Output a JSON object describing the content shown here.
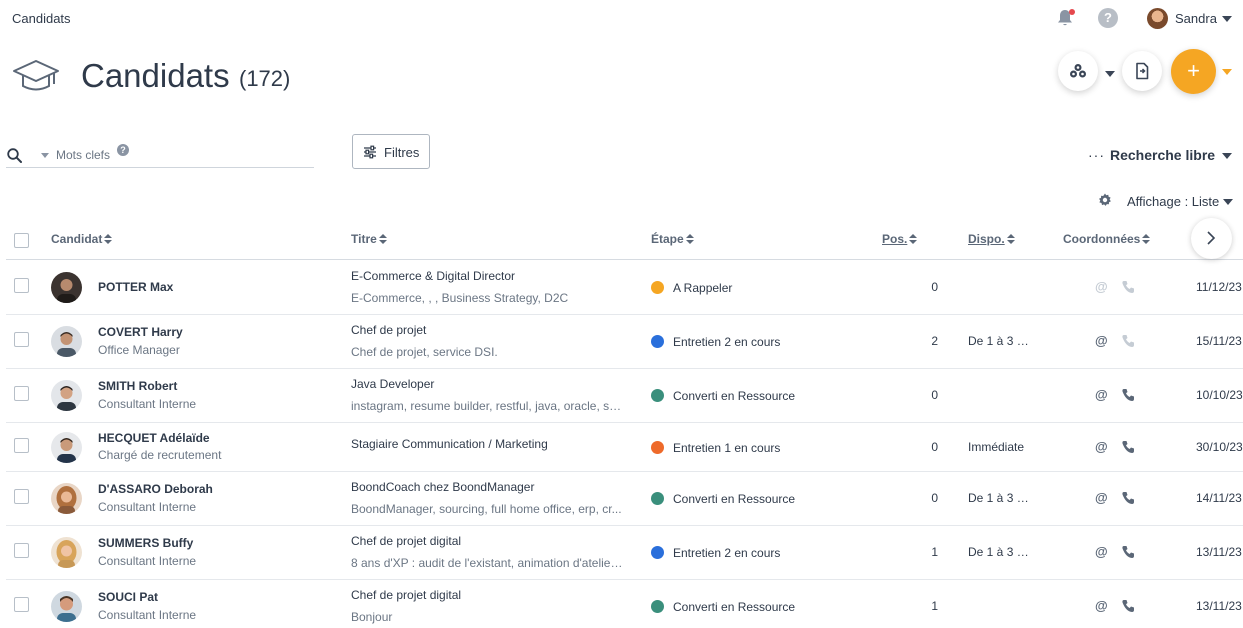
{
  "app": {
    "title": "Candidats"
  },
  "user": {
    "name": "Sandra"
  },
  "header": {
    "title": "Candidats",
    "count": "(172)"
  },
  "toolbar": {
    "add_label": "+"
  },
  "search": {
    "placeholder": "Mots clefs",
    "help": "?"
  },
  "filters": {
    "label": "Filtres"
  },
  "recherche": {
    "dots": "···",
    "label": "Recherche libre"
  },
  "affichage": {
    "label": "Affichage : Liste"
  },
  "help": {
    "label": "?"
  },
  "columns": {
    "candidat": "Candidat",
    "titre": "Titre",
    "etape": "Étape",
    "pos": "Pos.",
    "dispo": "Dispo.",
    "coordonnees": "Coordonnées"
  },
  "colors": {
    "accent": "#f5a623",
    "a_rappeler": "#f5a623",
    "entretien_2": "#2a6fdb",
    "converti": "#3a8f7c",
    "entretien_1": "#ee6a2a",
    "icon_active": "#5b6777",
    "icon_inactive": "#c5ccd4"
  },
  "rows": [
    {
      "name": "POTTER Max",
      "role": "",
      "titre": "E-Commerce & Digital Director",
      "desc": "E-Commerce, , , Business Strategy, D2C",
      "etape": "A Rappeler",
      "etape_color": "#f5a623",
      "pos": "0",
      "dispo": "",
      "email_active": false,
      "phone_active": false,
      "date": "11/12/23"
    },
    {
      "name": "COVERT Harry",
      "role": "Office Manager",
      "titre": "Chef de projet",
      "desc": "Chef de projet, service DSI.",
      "etape": "Entretien 2 en cours",
      "etape_color": "#2a6fdb",
      "pos": "2",
      "dispo": "De 1 à 3 m...",
      "email_active": true,
      "phone_active": false,
      "date": "15/11/23"
    },
    {
      "name": "SMITH Robert",
      "role": "Consultant Interne",
      "titre": "Java Developer",
      "desc": "instagram, resume builder, restful, java, oracle, sq...",
      "etape": "Converti en Ressource",
      "etape_color": "#3a8f7c",
      "pos": "0",
      "dispo": "",
      "email_active": true,
      "phone_active": true,
      "date": "10/10/23"
    },
    {
      "name": "HECQUET Adélaïde",
      "role": "Chargé de recrutement",
      "titre": "Stagiaire Communication / Marketing",
      "desc": "",
      "etape": "Entretien 1 en cours",
      "etape_color": "#ee6a2a",
      "pos": "0",
      "dispo": "Immédiate",
      "email_active": true,
      "phone_active": true,
      "date": "30/10/23"
    },
    {
      "name": "D'ASSARO Deborah",
      "role": "Consultant Interne",
      "titre": "BoondCoach chez BoondManager",
      "desc": "BoondManager, sourcing, full home office, erp, cr...",
      "etape": "Converti en Ressource",
      "etape_color": "#3a8f7c",
      "pos": "0",
      "dispo": "De 1 à 3 m...",
      "email_active": true,
      "phone_active": true,
      "date": "14/11/23"
    },
    {
      "name": "SUMMERS Buffy",
      "role": "Consultant Interne",
      "titre": "Chef de projet digital",
      "desc": "8 ans d'XP : audit de l'existant, animation d'atelier...",
      "etape": "Entretien 2 en cours",
      "etape_color": "#2a6fdb",
      "pos": "1",
      "dispo": "De 1 à 3 m...",
      "email_active": true,
      "phone_active": true,
      "date": "13/11/23"
    },
    {
      "name": "SOUCI Pat",
      "role": "Consultant Interne",
      "titre": "Chef de projet digital",
      "desc": "Bonjour",
      "etape": "Converti en Ressource",
      "etape_color": "#3a8f7c",
      "pos": "1",
      "dispo": "",
      "email_active": true,
      "phone_active": true,
      "date": "13/11/23"
    }
  ]
}
